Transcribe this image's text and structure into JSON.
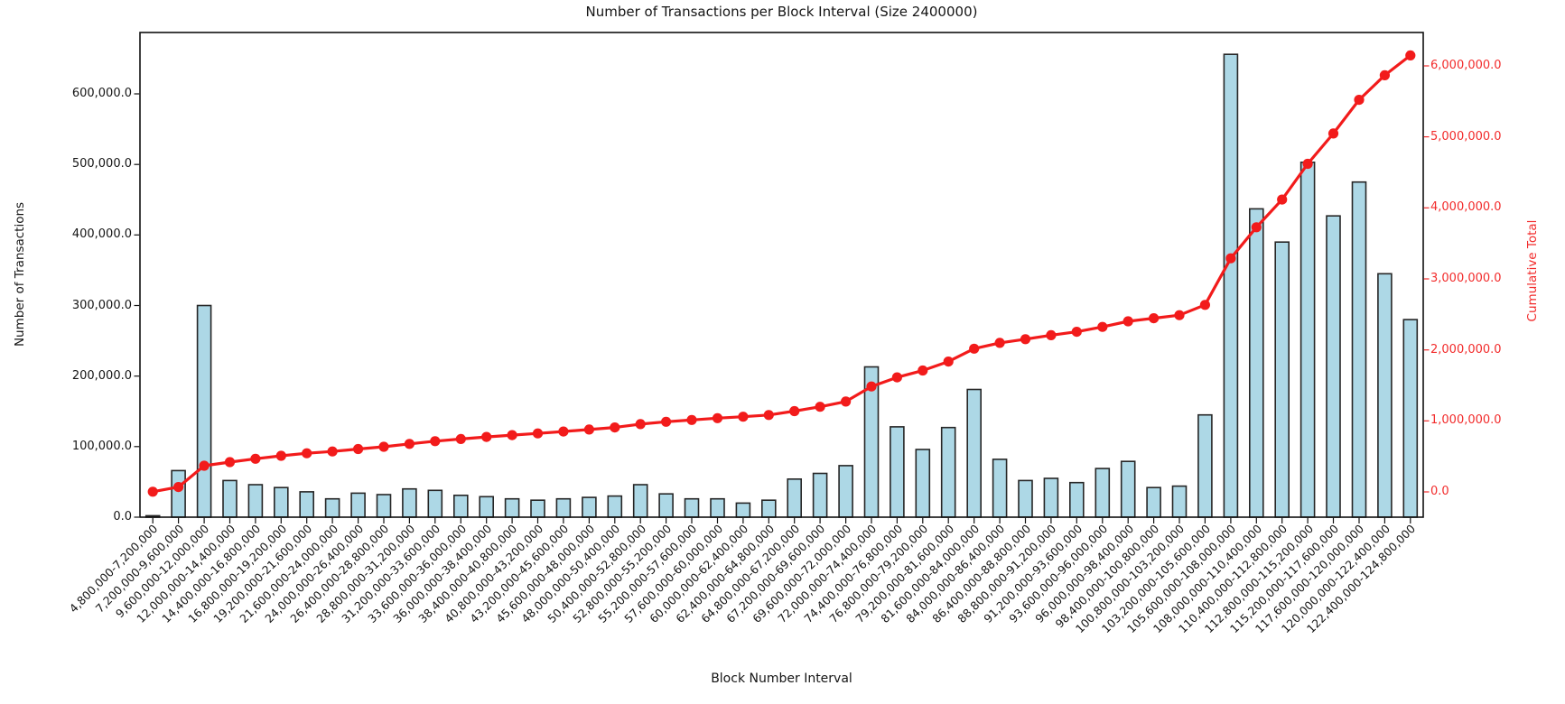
{
  "chart_data": {
    "type": "bar",
    "title": "Number of Transactions per Block Interval (Size 2400000)",
    "xlabel": "Block Number Interval",
    "ylabel_left": "Number of Transactions",
    "ylabel_right": "Cumulative Total",
    "grid": false,
    "legend": "none",
    "categories": [
      "4,800,000-7,200,000",
      "7,200,000-9,600,000",
      "9,600,000-12,000,000",
      "12,000,000-14,400,000",
      "14,400,000-16,800,000",
      "16,800,000-19,200,000",
      "19,200,000-21,600,000",
      "21,600,000-24,000,000",
      "24,000,000-26,400,000",
      "26,400,000-28,800,000",
      "28,800,000-31,200,000",
      "31,200,000-33,600,000",
      "33,600,000-36,000,000",
      "36,000,000-38,400,000",
      "38,400,000-40,800,000",
      "40,800,000-43,200,000",
      "43,200,000-45,600,000",
      "45,600,000-48,000,000",
      "48,000,000-50,400,000",
      "50,400,000-52,800,000",
      "52,800,000-55,200,000",
      "55,200,000-57,600,000",
      "57,600,000-60,000,000",
      "60,000,000-62,400,000",
      "62,400,000-64,800,000",
      "64,800,000-67,200,000",
      "67,200,000-69,600,000",
      "69,600,000-72,000,000",
      "72,000,000-74,400,000",
      "74,400,000-76,800,000",
      "76,800,000-79,200,000",
      "79,200,000-81,600,000",
      "81,600,000-84,000,000",
      "84,000,000-86,400,000",
      "86,400,000-88,800,000",
      "88,800,000-91,200,000",
      "91,200,000-93,600,000",
      "93,600,000-96,000,000",
      "96,000,000-98,400,000",
      "98,400,000-100,800,000",
      "100,800,000-103,200,000",
      "103,200,000-105,600,000",
      "105,600,000-108,000,000",
      "108,000,000-110,400,000",
      "110,400,000-112,800,000",
      "112,800,000-115,200,000",
      "115,200,000-117,600,000",
      "117,600,000-120,000,000",
      "120,000,000-122,400,000",
      "122,400,000-124,800,000"
    ],
    "series": [
      {
        "name": "Number of Transactions",
        "type": "bar",
        "axis": "left",
        "color": "#add8e6",
        "edge_color": "#262626",
        "values": [
          2000,
          66000,
          300000,
          52000,
          46000,
          42000,
          36000,
          26000,
          34000,
          32000,
          40000,
          38000,
          31000,
          29000,
          26000,
          24000,
          26000,
          28000,
          30000,
          46000,
          33000,
          26000,
          26000,
          20000,
          24000,
          54000,
          62000,
          73000,
          213000,
          128000,
          96000,
          127000,
          181000,
          82000,
          52000,
          55000,
          49000,
          69000,
          79000,
          42000,
          44000,
          145000,
          656000,
          437000,
          390000,
          503000,
          427000,
          475000,
          345000,
          280000
        ]
      },
      {
        "name": "Cumulative Total",
        "type": "line",
        "axis": "right",
        "color": "#f21b1b",
        "marker": "circle",
        "values": [
          2000,
          68000,
          368000,
          420000,
          466000,
          508000,
          544000,
          570000,
          604000,
          636000,
          676000,
          714000,
          745000,
          774000,
          800000,
          824000,
          850000,
          878000,
          908000,
          954000,
          987000,
          1013000,
          1039000,
          1059000,
          1083000,
          1137000,
          1199000,
          1272000,
          1485000,
          1613000,
          1709000,
          1836000,
          2017000,
          2099000,
          2151000,
          2206000,
          2255000,
          2324000,
          2403000,
          2445000,
          2489000,
          2634000,
          3290000,
          3727000,
          4117000,
          4620000,
          5047000,
          5522000,
          5867000,
          6147000
        ]
      }
    ],
    "ylim_left": [
      0,
      687000
    ],
    "ylim_right": [
      -356000,
      6470000
    ],
    "y_ticks_left": {
      "values": [
        0,
        100000,
        200000,
        300000,
        400000,
        500000,
        600000
      ],
      "labels": [
        "0.0",
        "100,000.0",
        "200,000.0",
        "300,000.0",
        "400,000.0",
        "500,000.0",
        "600,000.0"
      ]
    },
    "y_ticks_right": {
      "values": [
        0,
        1000000,
        2000000,
        3000000,
        4000000,
        5000000,
        6000000
      ],
      "labels": [
        "0.0",
        "1,000,000.0",
        "2,000,000.0",
        "3,000,000.0",
        "4,000,000.0",
        "5,000,000.0",
        "6,000,000.0"
      ]
    },
    "colors": {
      "bar_fill": "#add8e6",
      "bar_edge": "#262626",
      "line": "#f21b1b",
      "left_axis_text": "#151515",
      "right_axis_text": "#f22b2b",
      "background": "#ffffff"
    }
  }
}
